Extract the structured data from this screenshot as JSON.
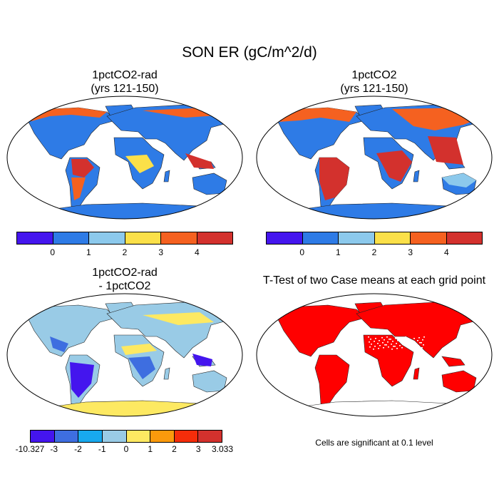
{
  "figure": {
    "title": "SON ER (gC/m^2/d)"
  },
  "panels": [
    {
      "id": "rad",
      "title_lines": [
        "1pctCO2-rad",
        "(yrs 121-150)"
      ],
      "colorbar": {
        "colors": [
          "#4415ee",
          "#2e7be6",
          "#8cc9ec",
          "#fbe049",
          "#f56120",
          "#d3312d"
        ],
        "labels": [
          "0",
          "1",
          "2",
          "3",
          "4"
        ]
      },
      "palette": {
        "land": "#2e7be6",
        "hot": "#f56120",
        "warm": "#fbe049",
        "dark": "#d3312d",
        "light": "#8cc9ec"
      }
    },
    {
      "id": "ctl",
      "title_lines": [
        "1pctCO2",
        "(yrs 121-150)"
      ],
      "colorbar": {
        "colors": [
          "#4415ee",
          "#2e7be6",
          "#8cc9ec",
          "#fbe049",
          "#f56120",
          "#d3312d"
        ],
        "labels": [
          "0",
          "1",
          "2",
          "3",
          "4"
        ]
      },
      "palette": {
        "land": "#2e7be6",
        "hot": "#f56120",
        "warm": "#fbe049",
        "dark": "#d3312d",
        "light": "#8cc9ec"
      }
    },
    {
      "id": "diff",
      "title_lines": [
        "1pctCO2-rad",
        "- 1pctCO2"
      ],
      "colorbar": {
        "colors": [
          "#4415ee",
          "#3e6ee0",
          "#18a9ee",
          "#99cbe6",
          "#fde962",
          "#fb9a0c",
          "#f52d0a",
          "#d3312d"
        ],
        "labels": [
          "-10.327",
          "-3",
          "-2",
          "-1",
          "0",
          "1",
          "2",
          "3",
          "3.033"
        ]
      },
      "palette": {
        "land": "#99cbe6",
        "neg": "#4415ee",
        "pos": "#fde962",
        "ice": "#fde962"
      }
    },
    {
      "id": "ttest",
      "title_lines": [
        "T-Test of two Case means at each grid point"
      ],
      "note": "Cells are significant at 0.1 level",
      "palette": {
        "sig": "#ff0000"
      }
    }
  ]
}
